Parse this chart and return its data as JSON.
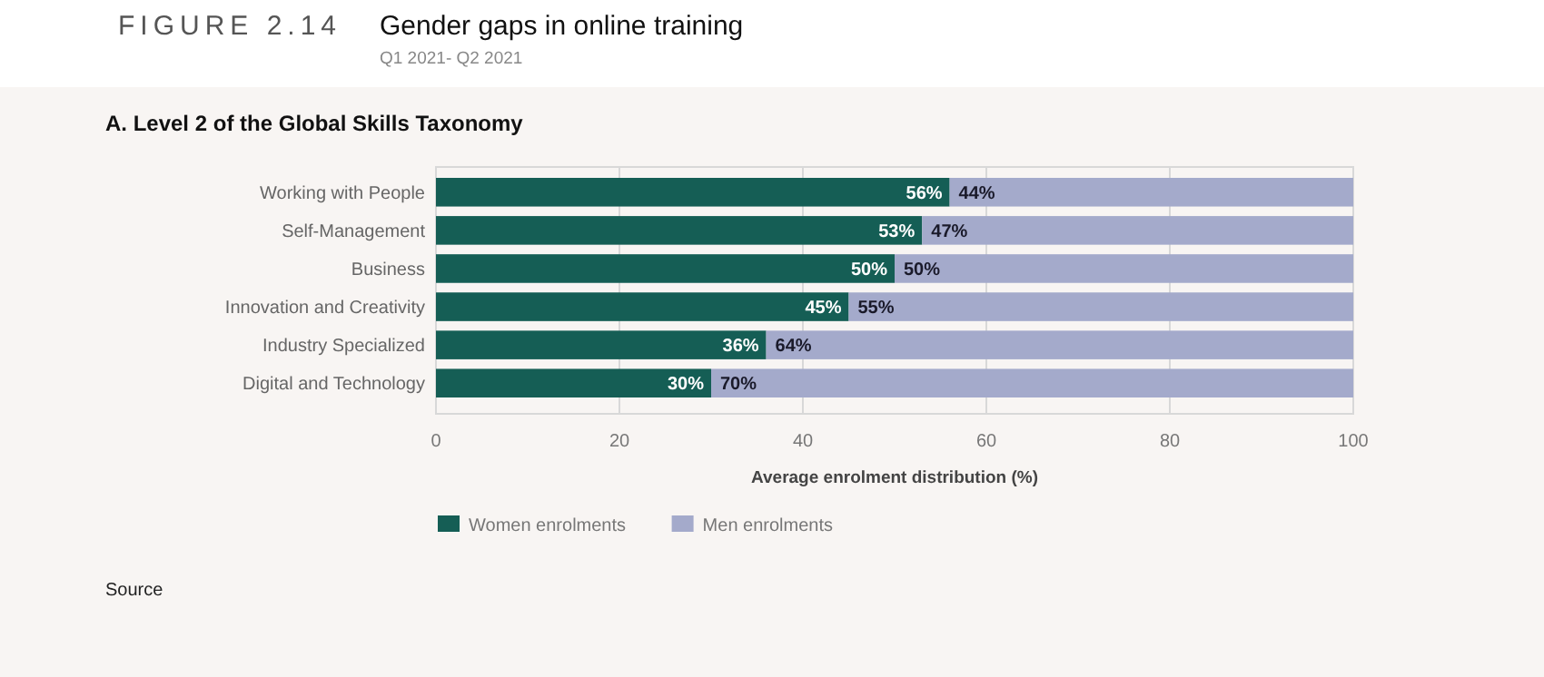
{
  "chart_data": {
    "type": "bar",
    "orientation": "horizontal",
    "stacked": true,
    "title": "Gender gaps in online training",
    "subtitle": "Q1 2021- Q2 2021",
    "xlabel": "Average enrolment distribution (%)",
    "annotations": [
      "FIGURE 2.14",
      "A. Level 2 of the Global Skills Taxonomy",
      "Source"
    ],
    "categories": [
      "Working with People",
      "Self-Management",
      "Business",
      "Innovation and Creativity",
      "Industry Specialized",
      "Digital and Technology"
    ],
    "series": [
      {
        "name": "Women enrolments",
        "color": "#155e55",
        "values": [
          56,
          53,
          50,
          45,
          36,
          30
        ],
        "value_labels": [
          "56%",
          "53%",
          "50%",
          "45%",
          "36%",
          "30%"
        ]
      },
      {
        "name": "Men enrolments",
        "color": "#a4aacb",
        "values": [
          44,
          47,
          50,
          55,
          64,
          70
        ],
        "value_labels": [
          "44%",
          "47%",
          "50%",
          "55%",
          "64%",
          "70%"
        ]
      }
    ],
    "xlim": [
      0,
      100
    ],
    "xticks": [
      0,
      20,
      40,
      60,
      80,
      100
    ],
    "grid": "x",
    "legend": "bottom left"
  }
}
